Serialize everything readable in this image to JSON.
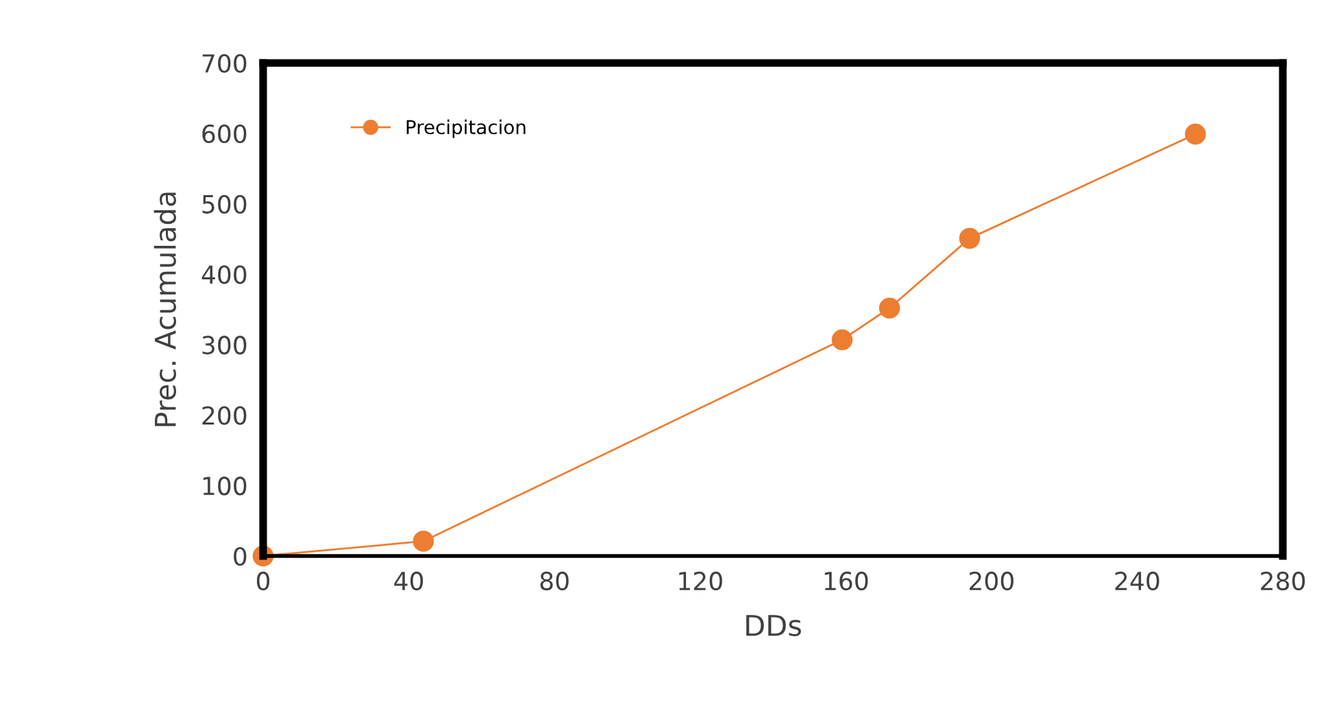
{
  "chart_data": {
    "type": "line",
    "xlabel": "DDs",
    "ylabel": "Prec. Acumulada",
    "x": [
      0,
      44,
      159,
      172,
      194,
      256
    ],
    "series": [
      {
        "name": "Precipitacion",
        "color": "#ed7d31",
        "values": [
          0,
          21,
          307,
          352,
          451,
          599
        ]
      }
    ],
    "xlim": [
      0,
      280
    ],
    "xticks": [
      0,
      40,
      80,
      120,
      160,
      200,
      240,
      280
    ],
    "ylim": [
      0,
      700
    ],
    "yticks": [
      0,
      100,
      200,
      300,
      400,
      500,
      600,
      700
    ],
    "grid": false,
    "legend": "top left",
    "marker": "circle",
    "line_style": "solid"
  }
}
